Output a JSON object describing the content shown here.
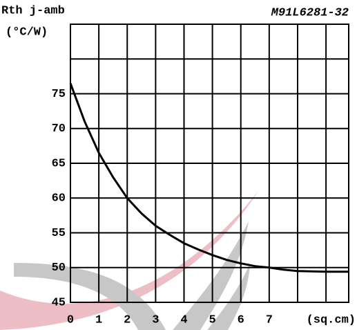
{
  "chart_data": {
    "type": "line",
    "y_label": "Rth j-amb",
    "y_unit": "(°C/W)",
    "code": "M91L6281-32",
    "x_label": "(sq.cm)",
    "x": [
      0,
      0.5,
      1,
      1.5,
      2,
      2.5,
      3,
      3.5,
      4,
      4.5,
      5,
      5.5,
      6,
      6.5,
      7,
      7.5,
      8,
      9,
      9.8
    ],
    "values": [
      76.5,
      71,
      66.5,
      63,
      60,
      57.8,
      56,
      54.7,
      53.5,
      52.6,
      51.8,
      51.1,
      50.6,
      50.2,
      50,
      49.7,
      49.5,
      49.4,
      49.4
    ],
    "color": "#000000",
    "xlim": [
      0,
      9.8
    ],
    "xticks": [
      0,
      1,
      2,
      3,
      4,
      5,
      6,
      7
    ],
    "ylim": [
      45,
      85
    ],
    "yticks": [
      45,
      50,
      55,
      60,
      65,
      70,
      75
    ],
    "grid": true
  }
}
